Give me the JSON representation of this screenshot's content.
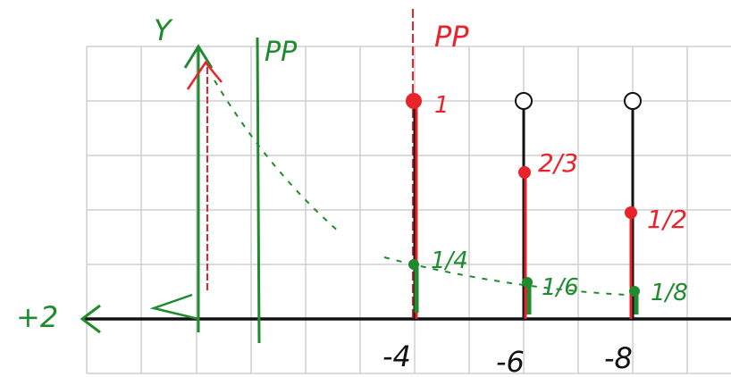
{
  "diagram": {
    "axis_labels": {
      "y": "Y",
      "left": "+2"
    },
    "line_labels": {
      "green": "PP",
      "red": "PP"
    },
    "x_labels": [
      "-4",
      "-6",
      "-8"
    ],
    "red_labels": [
      "1",
      "2/3",
      "1/2"
    ],
    "green_labels": [
      "1/4",
      "1/6",
      "1/8"
    ]
  }
}
